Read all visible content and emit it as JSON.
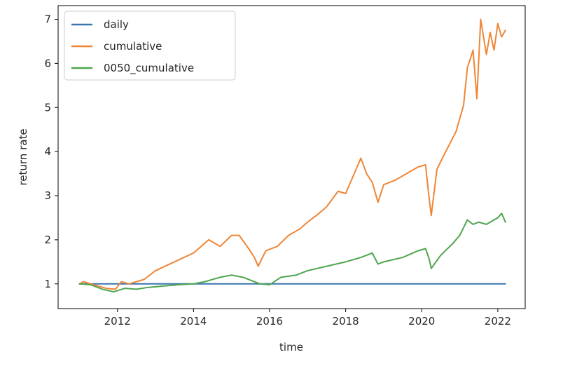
{
  "chart_data": {
    "type": "line",
    "title": "",
    "xlabel": "time",
    "ylabel": "return rate",
    "xlim": [
      2010.44,
      2022.72
    ],
    "ylim": [
      0.44,
      7.31
    ],
    "x_ticks": [
      2012,
      2014,
      2016,
      2018,
      2020,
      2022
    ],
    "x_tick_labels": [
      "2012",
      "2014",
      "2016",
      "2018",
      "2020",
      "2022"
    ],
    "y_ticks": [
      1,
      2,
      3,
      4,
      5,
      6,
      7
    ],
    "y_tick_labels": [
      "1",
      "2",
      "3",
      "4",
      "5",
      "6",
      "7"
    ],
    "grid": false,
    "legend_position": "top-left",
    "series": [
      {
        "name": "daily",
        "color": "#3a75b0",
        "x": [
          2011.0,
          2012.0,
          2013.0,
          2014.0,
          2015.0,
          2016.0,
          2017.0,
          2018.0,
          2019.0,
          2020.0,
          2021.0,
          2022.2
        ],
        "y": [
          1.0,
          1.0,
          1.0,
          1.0,
          1.0,
          1.0,
          1.0,
          1.0,
          1.0,
          1.0,
          1.0,
          1.0
        ]
      },
      {
        "name": "cumulative",
        "color": "#ef8636",
        "x": [
          2011.0,
          2011.1,
          2011.3,
          2011.5,
          2011.7,
          2011.95,
          2012.1,
          2012.3,
          2012.5,
          2012.7,
          2013.0,
          2013.5,
          2014.0,
          2014.4,
          2014.7,
          2015.0,
          2015.2,
          2015.45,
          2015.6,
          2015.7,
          2015.9,
          2016.2,
          2016.5,
          2016.8,
          2017.0,
          2017.3,
          2017.5,
          2017.8,
          2018.0,
          2018.2,
          2018.4,
          2018.55,
          2018.7,
          2018.85,
          2019.0,
          2019.3,
          2019.6,
          2019.9,
          2020.1,
          2020.18,
          2020.25,
          2020.4,
          2020.6,
          2020.75,
          2020.9,
          2021.1,
          2021.2,
          2021.35,
          2021.45,
          2021.55,
          2021.7,
          2021.8,
          2021.9,
          2022.0,
          2022.1,
          2022.2
        ],
        "y": [
          1.0,
          1.05,
          1.0,
          0.95,
          0.9,
          0.88,
          1.05,
          1.0,
          1.05,
          1.1,
          1.3,
          1.5,
          1.7,
          2.0,
          1.85,
          2.1,
          2.1,
          1.8,
          1.6,
          1.4,
          1.75,
          1.85,
          2.1,
          2.25,
          2.4,
          2.6,
          2.75,
          3.1,
          3.05,
          3.45,
          3.85,
          3.5,
          3.3,
          2.85,
          3.25,
          3.35,
          3.5,
          3.65,
          3.7,
          3.05,
          2.55,
          3.6,
          3.95,
          4.2,
          4.45,
          5.05,
          5.9,
          6.3,
          5.2,
          7.0,
          6.2,
          6.7,
          6.3,
          6.9,
          6.6,
          6.75
        ]
      },
      {
        "name": "0050_cumulative",
        "color": "#4fa64f",
        "x": [
          2011.0,
          2011.3,
          2011.6,
          2011.9,
          2012.2,
          2012.5,
          2012.8,
          2013.2,
          2013.6,
          2014.0,
          2014.3,
          2014.7,
          2015.0,
          2015.3,
          2015.6,
          2015.75,
          2016.0,
          2016.3,
          2016.7,
          2017.0,
          2017.5,
          2018.0,
          2018.4,
          2018.7,
          2018.85,
          2019.0,
          2019.5,
          2019.9,
          2020.1,
          2020.2,
          2020.25,
          2020.5,
          2020.8,
          2021.0,
          2021.2,
          2021.35,
          2021.5,
          2021.7,
          2022.0,
          2022.1,
          2022.2
        ],
        "y": [
          1.0,
          0.98,
          0.88,
          0.82,
          0.9,
          0.88,
          0.92,
          0.95,
          0.98,
          1.0,
          1.05,
          1.15,
          1.2,
          1.15,
          1.05,
          1.0,
          0.98,
          1.15,
          1.2,
          1.3,
          1.4,
          1.5,
          1.6,
          1.7,
          1.45,
          1.5,
          1.6,
          1.75,
          1.8,
          1.55,
          1.35,
          1.65,
          1.9,
          2.1,
          2.45,
          2.35,
          2.4,
          2.35,
          2.5,
          2.6,
          2.4
        ]
      }
    ]
  }
}
